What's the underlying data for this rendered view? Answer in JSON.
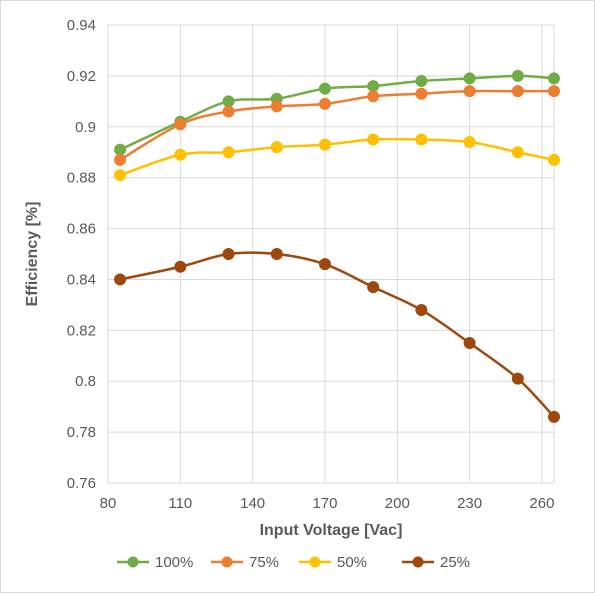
{
  "chart_data": {
    "type": "line",
    "title": "",
    "xlabel": "Input Voltage [Vac]",
    "ylabel": "Efficiency [%]",
    "xlim": [
      80,
      265
    ],
    "ylim": [
      0.76,
      0.94
    ],
    "x_ticks": [
      80,
      110,
      140,
      170,
      200,
      230,
      260
    ],
    "x_tick_labels": [
      "80",
      "110",
      "140",
      "170",
      "200",
      "230",
      "260"
    ],
    "y_ticks": [
      0.76,
      0.78,
      0.8,
      0.82,
      0.84,
      0.86,
      0.88,
      0.9,
      0.92,
      0.94
    ],
    "y_tick_labels": [
      "0.76",
      "0.78",
      "0.8",
      "0.82",
      "0.84",
      "0.86",
      "0.88",
      "0.9",
      "0.92",
      "0.94"
    ],
    "grid": "vertical and horizontal",
    "legend": "bottom",
    "x": [
      85,
      110,
      130,
      150,
      170,
      190,
      210,
      230,
      250,
      265
    ],
    "series": [
      {
        "name": "100%",
        "color": "#70ad47",
        "values": [
          0.891,
          0.902,
          0.91,
          0.911,
          0.915,
          0.916,
          0.918,
          0.919,
          0.92,
          0.919
        ]
      },
      {
        "name": "75%",
        "color": "#ed7d31",
        "values": [
          0.887,
          0.901,
          0.906,
          0.908,
          0.909,
          0.912,
          0.913,
          0.914,
          0.914,
          0.914
        ]
      },
      {
        "name": "50%",
        "color": "#ffc000",
        "values": [
          0.881,
          0.889,
          0.89,
          0.892,
          0.893,
          0.895,
          0.895,
          0.894,
          0.89,
          0.887
        ]
      },
      {
        "name": "25%",
        "color": "#9e480e",
        "values": [
          0.84,
          0.845,
          0.85,
          0.85,
          0.846,
          0.837,
          0.828,
          0.815,
          0.801,
          0.786
        ]
      }
    ]
  }
}
